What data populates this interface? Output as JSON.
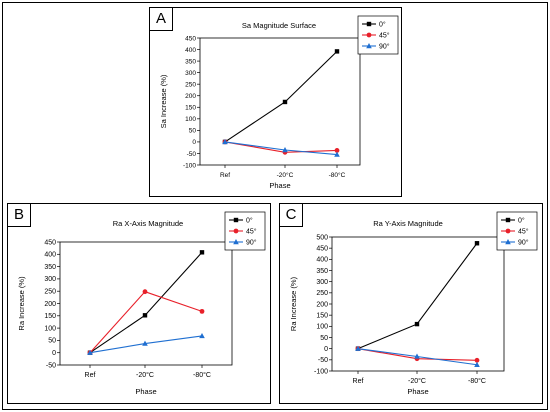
{
  "panels": [
    {
      "letter": "A"
    },
    {
      "letter": "B"
    },
    {
      "letter": "C"
    }
  ],
  "colors": {
    "0°": "#000000",
    "45°": "#e8202a",
    "90°": "#1f6fd1"
  },
  "chart_data": [
    {
      "type": "line",
      "title": "Sa Magnitude Surface",
      "xlabel": "Phase",
      "ylabel": "Sa Increase (%)",
      "categories": [
        "Ref",
        "-20°C",
        "-80°C"
      ],
      "ylim": [
        -100,
        450
      ],
      "yticks": [
        -100,
        -50,
        0,
        50,
        100,
        150,
        200,
        250,
        300,
        350,
        400,
        450
      ],
      "legend": "top-right",
      "series": [
        {
          "name": "0°",
          "values": [
            0,
            173,
            392
          ]
        },
        {
          "name": "45°",
          "values": [
            0,
            -45,
            -37
          ]
        },
        {
          "name": "90°",
          "values": [
            0,
            -35,
            -55
          ]
        }
      ]
    },
    {
      "type": "line",
      "title": "Ra X-Axis Magnitude",
      "xlabel": "Phase",
      "ylabel": "Ra Increase (%)",
      "categories": [
        "Ref",
        "-20°C",
        "-80°C"
      ],
      "ylim": [
        -50,
        450
      ],
      "yticks": [
        -50,
        0,
        50,
        100,
        150,
        200,
        250,
        300,
        350,
        400,
        450
      ],
      "legend": "top-right",
      "series": [
        {
          "name": "0°",
          "values": [
            0,
            152,
            408
          ]
        },
        {
          "name": "45°",
          "values": [
            0,
            248,
            168
          ]
        },
        {
          "name": "90°",
          "values": [
            0,
            37,
            68
          ]
        }
      ]
    },
    {
      "type": "line",
      "title": "Ra Y-Axis Magnitude",
      "xlabel": "Phase",
      "ylabel": "Ra Increase (%)",
      "categories": [
        "Ref",
        "-20°C",
        "-80°C"
      ],
      "ylim": [
        -100,
        500
      ],
      "yticks": [
        -100,
        -50,
        0,
        50,
        100,
        150,
        200,
        250,
        300,
        350,
        400,
        450,
        500
      ],
      "legend": "top-right",
      "series": [
        {
          "name": "0°",
          "values": [
            0,
            110,
            472
          ]
        },
        {
          "name": "45°",
          "values": [
            0,
            -45,
            -52
          ]
        },
        {
          "name": "90°",
          "values": [
            0,
            -35,
            -72
          ]
        }
      ]
    }
  ]
}
